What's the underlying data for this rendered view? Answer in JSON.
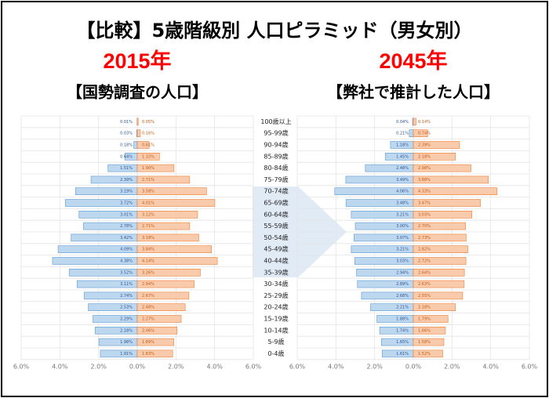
{
  "title": "【比較】5歳階級別 人口ピラミッド（男女別）",
  "chart_data": [
    {
      "type": "pyramid",
      "year": "2015年",
      "subtitle": "【国勢調査の人口】",
      "categories": [
        "100歳以上",
        "95-99歳",
        "90-94歳",
        "85-89歳",
        "80-84歳",
        "75-79歳",
        "70-74歳",
        "65-69歳",
        "60-64歳",
        "55-59歳",
        "50-54歳",
        "45-49歳",
        "40-44歳",
        "35-39歳",
        "30-34歳",
        "25-29歳",
        "20-24歳",
        "15-19歳",
        "10-14歳",
        "5-9歳",
        "0-4歳"
      ],
      "xlim": [
        -6,
        6
      ],
      "xticks": [
        {
          "value": -6,
          "label": "6.0%"
        },
        {
          "value": -4,
          "label": "4.0%"
        },
        {
          "value": -2,
          "label": "2.0%"
        },
        {
          "value": 0,
          "label": "0.0%"
        },
        {
          "value": 2,
          "label": "2.0%"
        },
        {
          "value": 4,
          "label": "4.0%"
        },
        {
          "value": 6,
          "label": "6.0%"
        }
      ],
      "series": [
        {
          "color": "#bdd7ee",
          "values": [
            0.01,
            0.03,
            0.18,
            0.64,
            1.51,
            2.39,
            3.19,
            3.72,
            3.01,
            2.78,
            3.42,
            4.09,
            4.38,
            3.52,
            3.11,
            2.74,
            2.53,
            2.29,
            2.18,
            1.98,
            1.91
          ],
          "value_labels": [
            "0.01%",
            "0.03%",
            "0.18%",
            "0.64%",
            "1.51%",
            "2.39%",
            "3.19%",
            "3.72%",
            "3.01%",
            "2.78%",
            "3.42%",
            "4.09%",
            "4.38%",
            "3.52%",
            "3.11%",
            "2.74%",
            "2.53%",
            "2.29%",
            "2.18%",
            "1.98%",
            "1.91%"
          ]
        },
        {
          "color": "#f8cbad",
          "values": [
            0.05,
            0.16,
            0.61,
            1.15,
            1.9,
            2.71,
            3.58,
            4.01,
            3.12,
            2.71,
            3.18,
            3.84,
            4.14,
            3.26,
            2.94,
            2.67,
            2.48,
            2.27,
            2.06,
            1.89,
            1.83
          ],
          "value_labels": [
            "0.05%",
            "0.16%",
            "0.61%",
            "1.15%",
            "1.90%",
            "2.71%",
            "3.58%",
            "4.01%",
            "3.12%",
            "2.71%",
            "3.18%",
            "3.84%",
            "4.14%",
            "3.26%",
            "2.94%",
            "2.67%",
            "2.48%",
            "2.27%",
            "2.06%",
            "1.89%",
            "1.83%"
          ]
        }
      ]
    },
    {
      "type": "pyramid",
      "year": "2045年",
      "subtitle": "【弊社で推計した人口】",
      "xlim": [
        -6,
        6
      ],
      "xticks": [
        {
          "value": -6,
          "label": "6.0%"
        },
        {
          "value": -4,
          "label": "4.0%"
        },
        {
          "value": -2,
          "label": "2.0%"
        },
        {
          "value": 0,
          "label": "0.0%"
        },
        {
          "value": 2,
          "label": "2.0%"
        },
        {
          "value": 4,
          "label": "4.0%"
        },
        {
          "value": 6,
          "label": "6.0%"
        }
      ],
      "series": [
        {
          "color": "#bdd7ee",
          "values": [
            0.04,
            0.21,
            1.18,
            1.45,
            2.48,
            3.49,
            4.06,
            3.48,
            3.21,
            3.0,
            3.07,
            3.21,
            3.03,
            2.94,
            2.89,
            2.68,
            2.21,
            1.88,
            1.74,
            1.65,
            1.61
          ],
          "value_labels": [
            "0.04%",
            "0.21%",
            "1.18%",
            "1.45%",
            "2.48%",
            "3.49%",
            "4.06%",
            "3.48%",
            "3.21%",
            "3.00%",
            "3.07%",
            "3.21%",
            "3.03%",
            "2.94%",
            "2.89%",
            "2.68%",
            "2.21%",
            "1.88%",
            "1.74%",
            "1.65%",
            "1.61%"
          ]
        },
        {
          "color": "#f8cbad",
          "values": [
            0.14,
            0.74,
            2.39,
            2.18,
            2.98,
            3.88,
            4.33,
            3.47,
            3.03,
            2.7,
            2.73,
            2.82,
            2.72,
            2.64,
            2.63,
            2.55,
            2.18,
            1.79,
            1.66,
            1.58,
            1.52
          ],
          "value_labels": [
            "0.14%",
            "0.74%",
            "2.39%",
            "2.18%",
            "2.98%",
            "3.88%",
            "4.33%",
            "3.47%",
            "3.03%",
            "2.70%",
            "2.73%",
            "2.82%",
            "2.72%",
            "2.64%",
            "2.63%",
            "2.55%",
            "2.18%",
            "1.79%",
            "1.66%",
            "1.58%",
            "1.52%"
          ]
        }
      ]
    }
  ]
}
